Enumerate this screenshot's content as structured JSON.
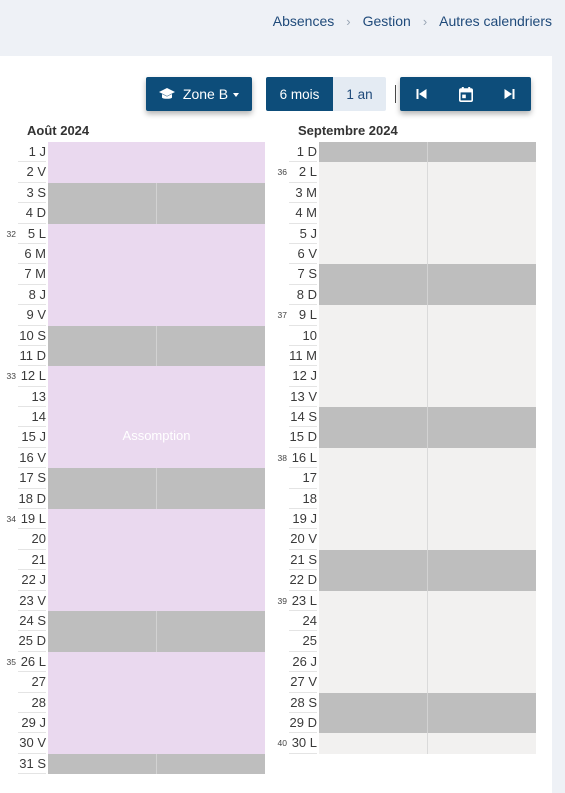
{
  "breadcrumb": [
    "Absences",
    "Gestion",
    "Autres calendriers"
  ],
  "toolbar": {
    "zone_label": "Zone B",
    "zone_icon": "graduation-cap-icon",
    "period_options": [
      "6 mois",
      "1 an"
    ],
    "period_selected": "6 mois",
    "nav_icons": [
      "skip-previous-icon",
      "calendar-today-icon",
      "skip-next-icon"
    ]
  },
  "colors": {
    "primary": "#0d4d7a",
    "holiday": "#ead9ef",
    "weekend": "#bebebe",
    "workday": "#f2f1f0"
  },
  "holiday_label": "Assomption",
  "months": [
    {
      "title": "Août 2024",
      "days": [
        {
          "label": "1 J",
          "type": "holiday"
        },
        {
          "label": "2 V",
          "type": "holiday"
        },
        {
          "label": "3 S",
          "type": "weekend"
        },
        {
          "label": "4 D",
          "type": "weekend"
        },
        {
          "label": "5 L",
          "type": "holiday",
          "week": "32"
        },
        {
          "label": "6 M",
          "type": "holiday"
        },
        {
          "label": "7 M",
          "type": "holiday"
        },
        {
          "label": "8 J",
          "type": "holiday"
        },
        {
          "label": "9 V",
          "type": "holiday"
        },
        {
          "label": "10 S",
          "type": "weekend"
        },
        {
          "label": "11 D",
          "type": "weekend"
        },
        {
          "label": "12 L",
          "type": "holiday",
          "week": "33"
        },
        {
          "label": "13 M",
          "type": "holiday"
        },
        {
          "label": "14 M",
          "type": "holiday"
        },
        {
          "label": "15 J",
          "type": "holiday"
        },
        {
          "label": "16 V",
          "type": "holiday"
        },
        {
          "label": "17 S",
          "type": "weekend"
        },
        {
          "label": "18 D",
          "type": "weekend"
        },
        {
          "label": "19 L",
          "type": "holiday",
          "week": "34"
        },
        {
          "label": "20 M",
          "type": "holiday"
        },
        {
          "label": "21 M",
          "type": "holiday"
        },
        {
          "label": "22 J",
          "type": "holiday"
        },
        {
          "label": "23 V",
          "type": "holiday"
        },
        {
          "label": "24 S",
          "type": "weekend"
        },
        {
          "label": "25 D",
          "type": "weekend"
        },
        {
          "label": "26 L",
          "type": "holiday",
          "week": "35"
        },
        {
          "label": "27 M",
          "type": "holiday"
        },
        {
          "label": "28 M",
          "type": "holiday"
        },
        {
          "label": "29 J",
          "type": "holiday"
        },
        {
          "label": "30 V",
          "type": "holiday"
        },
        {
          "label": "31 S",
          "type": "weekend"
        }
      ]
    },
    {
      "title": "Septembre 2024",
      "days": [
        {
          "label": "1 D",
          "type": "weekend"
        },
        {
          "label": "2 L",
          "type": "normal",
          "week": "36"
        },
        {
          "label": "3 M",
          "type": "normal"
        },
        {
          "label": "4 M",
          "type": "normal"
        },
        {
          "label": "5 J",
          "type": "normal"
        },
        {
          "label": "6 V",
          "type": "normal"
        },
        {
          "label": "7 S",
          "type": "weekend"
        },
        {
          "label": "8 D",
          "type": "weekend"
        },
        {
          "label": "9 L",
          "type": "normal",
          "week": "37"
        },
        {
          "label": "10 M",
          "type": "normal"
        },
        {
          "label": "11 M",
          "type": "normal"
        },
        {
          "label": "12 J",
          "type": "normal"
        },
        {
          "label": "13 V",
          "type": "normal"
        },
        {
          "label": "14 S",
          "type": "weekend"
        },
        {
          "label": "15 D",
          "type": "weekend"
        },
        {
          "label": "16 L",
          "type": "normal",
          "week": "38"
        },
        {
          "label": "17 M",
          "type": "normal"
        },
        {
          "label": "18 M",
          "type": "normal"
        },
        {
          "label": "19 J",
          "type": "normal"
        },
        {
          "label": "20 V",
          "type": "normal"
        },
        {
          "label": "21 S",
          "type": "weekend"
        },
        {
          "label": "22 D",
          "type": "weekend"
        },
        {
          "label": "23 L",
          "type": "normal",
          "week": "39"
        },
        {
          "label": "24 M",
          "type": "normal"
        },
        {
          "label": "25 M",
          "type": "normal"
        },
        {
          "label": "26 J",
          "type": "normal"
        },
        {
          "label": "27 V",
          "type": "normal"
        },
        {
          "label": "28 S",
          "type": "weekend"
        },
        {
          "label": "29 D",
          "type": "weekend"
        },
        {
          "label": "30 L",
          "type": "normal",
          "week": "40"
        }
      ]
    }
  ]
}
